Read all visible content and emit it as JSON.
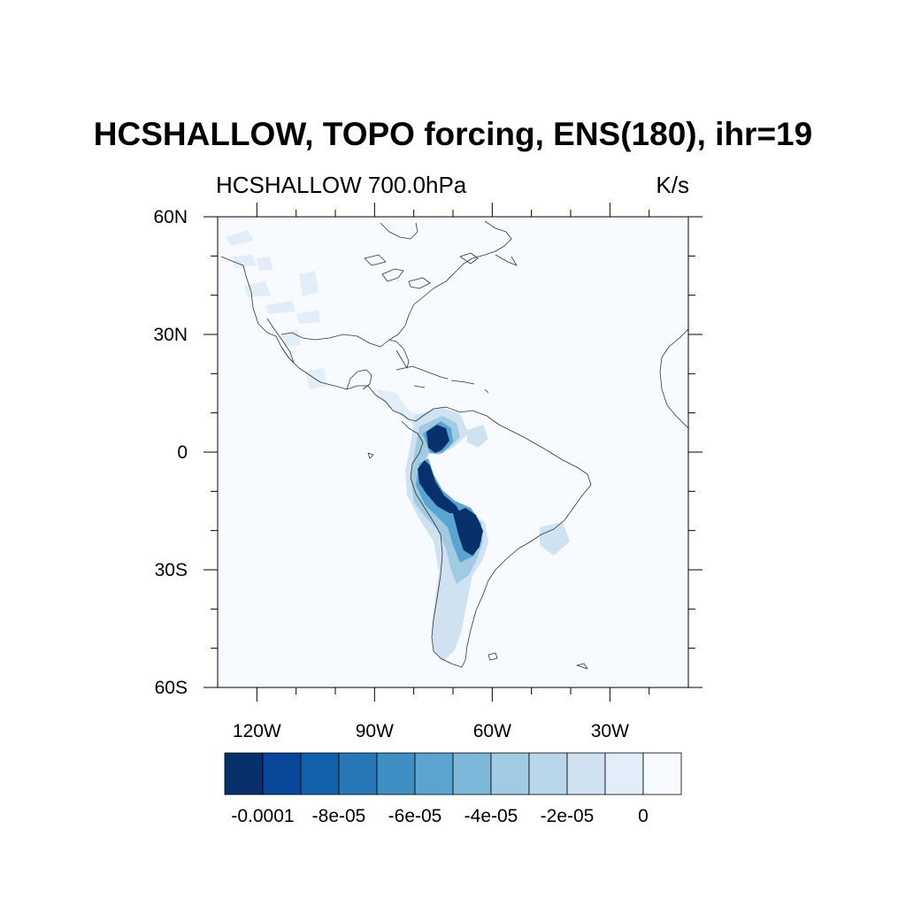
{
  "figure": {
    "title": "HCSHALLOW, TOPO forcing, ENS(180), ihr=19",
    "left_label": "HCSHALLOW 700.0hPa",
    "right_label": "K/s"
  },
  "map": {
    "projection": "cylindrical equidistant",
    "lon_range": [
      -130,
      -10
    ],
    "lat_range": [
      -60,
      60
    ],
    "lat_tick_labels": [
      {
        "value": 60,
        "label": "60N"
      },
      {
        "value": 30,
        "label": "30N"
      },
      {
        "value": 0,
        "label": "0"
      },
      {
        "value": -30,
        "label": "30S"
      },
      {
        "value": -60,
        "label": "60S"
      }
    ],
    "lon_tick_labels": [
      {
        "value": -120,
        "label": "120W"
      },
      {
        "value": -90,
        "label": "90W"
      },
      {
        "value": -60,
        "label": "60W"
      },
      {
        "value": -30,
        "label": "30W"
      }
    ],
    "background_color": "#f7fbff"
  },
  "colorbar": {
    "colors": [
      "#08306b",
      "#08479a",
      "#1361aa",
      "#2878b8",
      "#3f8fc5",
      "#5ba3d0",
      "#7db8da",
      "#a0cbe2",
      "#bad6eb",
      "#d0e1f2",
      "#e1edf8",
      "#f7fbff"
    ],
    "labels": [
      "-0.0001",
      "-8e-05",
      "-6e-05",
      "-4e-05",
      "-2e-05",
      "0"
    ]
  },
  "features": [
    {
      "name": "northern-andes-maximum",
      "level_index": 0
    },
    {
      "name": "peru-andes-band",
      "level_index": 0
    },
    {
      "name": "bolivia-andes-maximum",
      "level_index": 0
    },
    {
      "name": "central-andes-halo",
      "level_index": 6
    },
    {
      "name": "southern-andes-trace",
      "level_index": 9
    },
    {
      "name": "north-america-patches",
      "level_index": 10
    }
  ]
}
